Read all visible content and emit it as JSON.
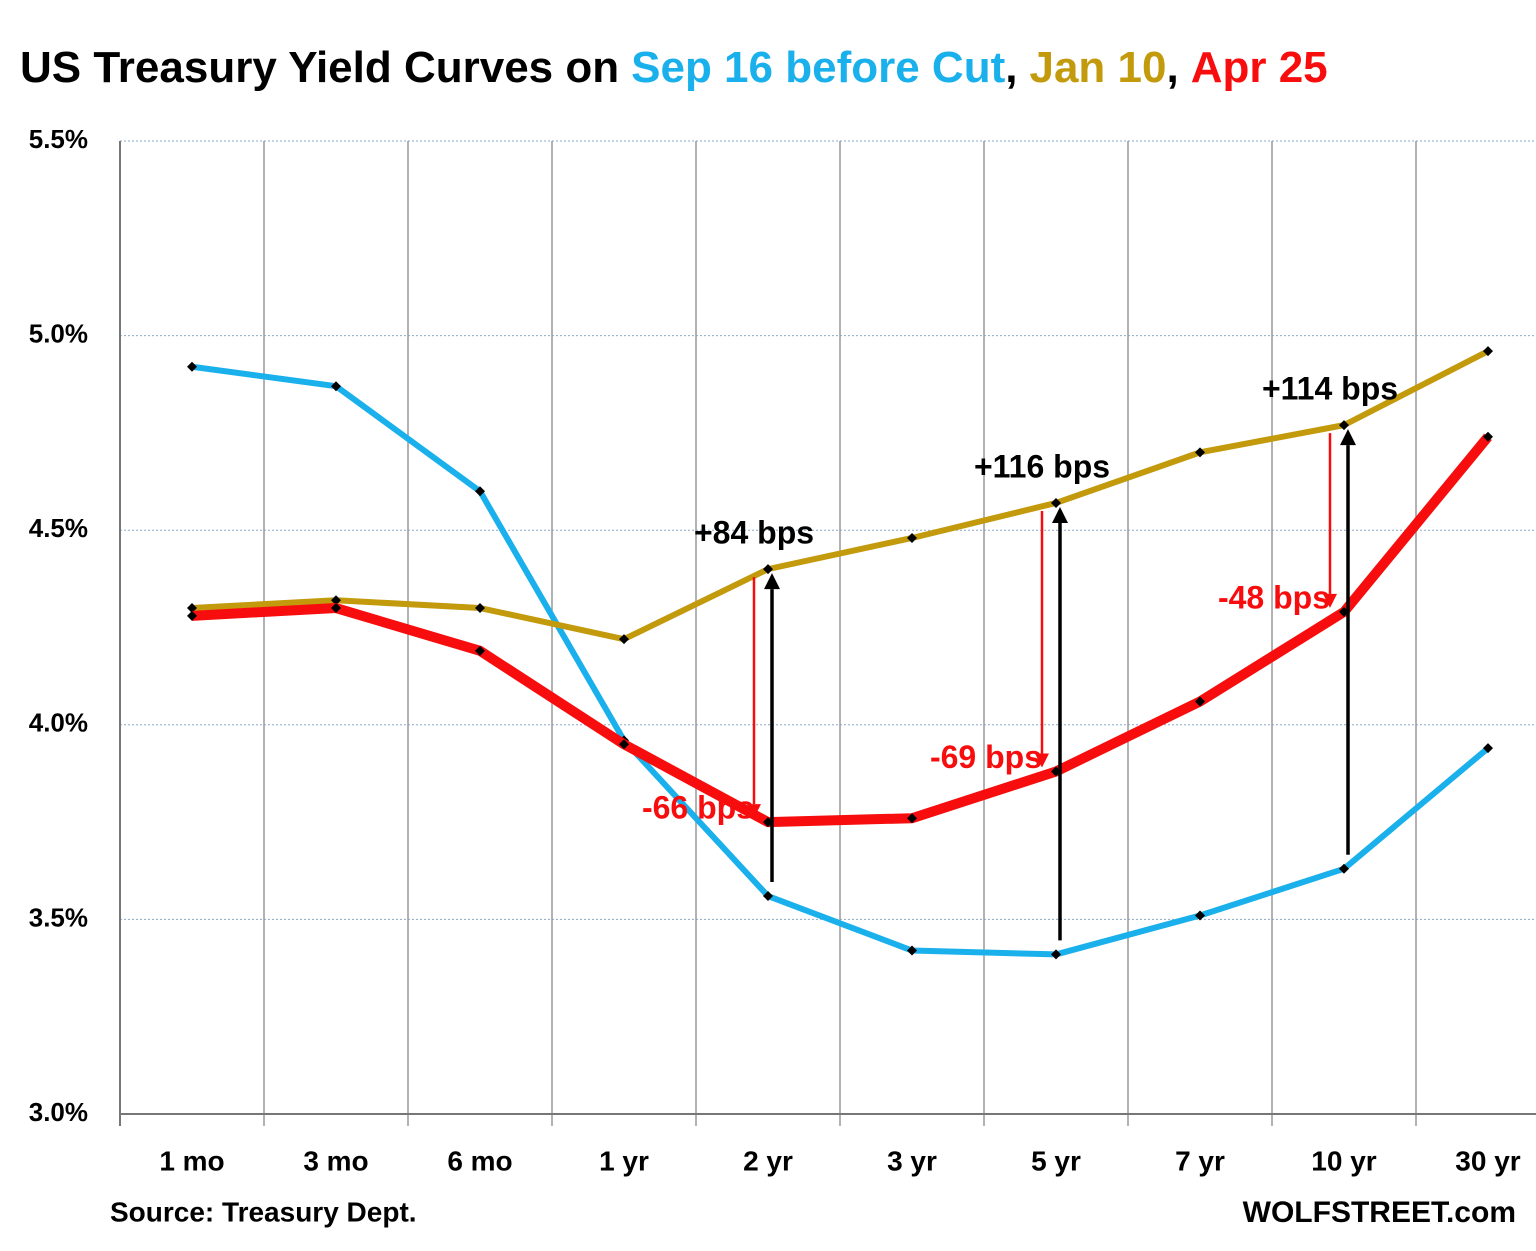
{
  "chart_data": {
    "type": "line",
    "title": "US Treasury Yield Curves on",
    "title_separator": ",",
    "categories": [
      "1 mo",
      "3 mo",
      "6 mo",
      "1 yr",
      "2 yr",
      "3 yr",
      "5 yr",
      "7 yr",
      "10 yr",
      "30 yr"
    ],
    "series": [
      {
        "name": "Sep 16 before Cut",
        "color": "#1ab0ec",
        "values": [
          4.92,
          4.87,
          4.6,
          3.96,
          3.56,
          3.42,
          3.41,
          3.51,
          3.63,
          3.94
        ]
      },
      {
        "name": "Jan 10",
        "color": "#c29a0c",
        "values": [
          4.3,
          4.32,
          4.3,
          4.22,
          4.4,
          4.48,
          4.57,
          4.7,
          4.77,
          4.96
        ]
      },
      {
        "name": "Apr 25",
        "color": "#f70d0d",
        "values": [
          4.28,
          4.3,
          4.19,
          3.95,
          3.75,
          3.76,
          3.88,
          4.06,
          4.29,
          4.74
        ]
      }
    ],
    "ylim": [
      3.0,
      5.5
    ],
    "yticks": [
      {
        "value": 3.0,
        "label": "3.0%"
      },
      {
        "value": 3.5,
        "label": "3.5%"
      },
      {
        "value": 4.0,
        "label": "4.0%"
      },
      {
        "value": 4.5,
        "label": "4.5%"
      },
      {
        "value": 5.0,
        "label": "5.0%"
      },
      {
        "value": 5.5,
        "label": "5.5%"
      }
    ],
    "grid": true,
    "annotations": [
      {
        "category_index": 4,
        "from_series": 0,
        "to_series": 1,
        "label": "+84 bps",
        "color": "#000000"
      },
      {
        "category_index": 4,
        "from_series": 1,
        "to_series": 2,
        "label": "-66 bps",
        "color": "#f70d0d"
      },
      {
        "category_index": 6,
        "from_series": 0,
        "to_series": 1,
        "label": "+116 bps",
        "color": "#000000"
      },
      {
        "category_index": 6,
        "from_series": 1,
        "to_series": 2,
        "label": "-69 bps",
        "color": "#f70d0d"
      },
      {
        "category_index": 8,
        "from_series": 0,
        "to_series": 1,
        "label": "+114 bps",
        "color": "#000000"
      },
      {
        "category_index": 8,
        "from_series": 1,
        "to_series": 2,
        "label": "-48 bps",
        "color": "#f70d0d"
      }
    ],
    "source": "Source: Treasury Dept.",
    "credit": "WOLFSTREET.com"
  }
}
